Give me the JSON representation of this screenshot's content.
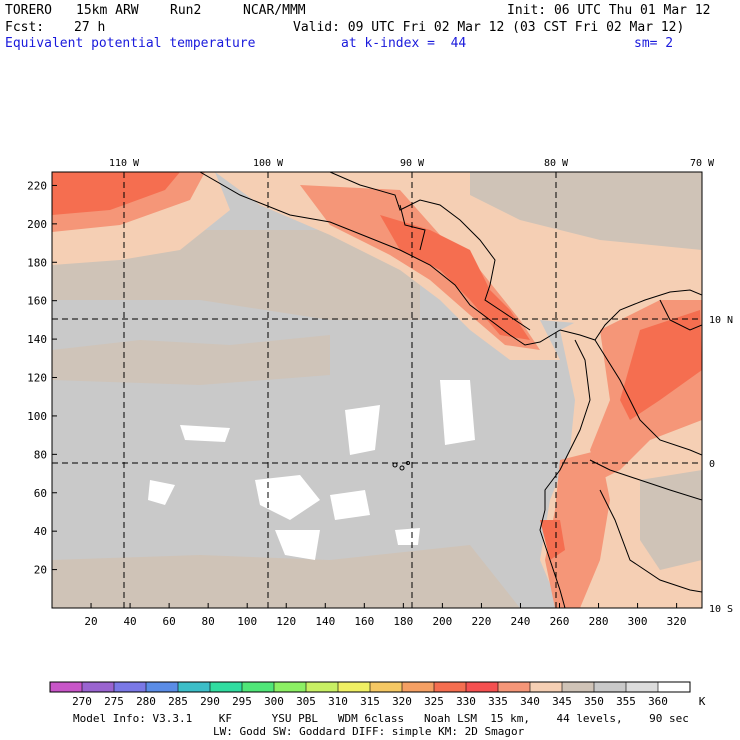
{
  "header": {
    "model": "TORERO",
    "resolution": "15km ARW",
    "run": "Run2",
    "org": "NCAR/MMM",
    "init": "Init: 06 UTC Thu 01 Mar 12",
    "fcst_label": "Fcst:",
    "fcst_value": "27 h",
    "valid": "Valid: 09 UTC Fri 02 Mar 12 (03 CST Fri 02 Mar 12)",
    "field": "Equivalent potential temperature",
    "level": "at k-index =  44",
    "smoothing": "sm= 2"
  },
  "map": {
    "lon_labels": [
      "110 W",
      "100 W",
      "90 W",
      "80 W",
      "70 W"
    ],
    "lat_labels": [
      "10 N",
      "0",
      "10 S"
    ],
    "x_ticks": [
      "20",
      "40",
      "60",
      "80",
      "100",
      "120",
      "140",
      "160",
      "180",
      "200",
      "220",
      "240",
      "260",
      "280",
      "300",
      "320"
    ],
    "y_ticks": [
      "20",
      "40",
      "60",
      "80",
      "100",
      "120",
      "140",
      "160",
      "180",
      "200",
      "220"
    ],
    "grid": true,
    "features": [
      "Central America coastline",
      "Galapagos Islands",
      "South America coastline"
    ]
  },
  "colorbar": {
    "unit": "K",
    "levels": [
      "270",
      "275",
      "280",
      "285",
      "290",
      "295",
      "300",
      "305",
      "310",
      "315",
      "320",
      "325",
      "330",
      "335",
      "340",
      "345",
      "350",
      "355",
      "360"
    ],
    "colors": [
      "#c855c8",
      "#9a64d0",
      "#7a78e6",
      "#5a8ce6",
      "#3cbec8",
      "#30dca0",
      "#50e678",
      "#8cf064",
      "#c8f064",
      "#f0f064",
      "#f5c864",
      "#f5a064",
      "#f56e50",
      "#f55050",
      "#f59678",
      "#f5cfb4",
      "#cfc3b7",
      "#c9c9c9",
      "#dcdcdc",
      "#ffffff"
    ]
  },
  "footer": {
    "line1": "Model Info: V3.3.1    KF      YSU PBL   WDM 6class   Noah LSM  15 km,    44 levels,    90 sec",
    "line2": "LW: Godd SW: Goddard DIFF: simple KM: 2D Smagor"
  }
}
